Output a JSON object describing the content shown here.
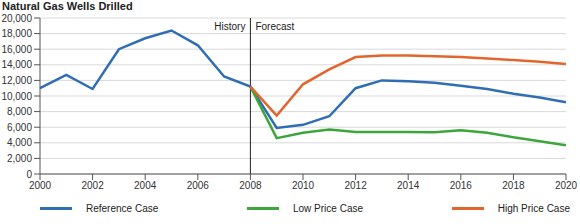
{
  "chart_data": {
    "type": "line",
    "title": "Natural Gas Wells Drilled",
    "x": [
      2000,
      2001,
      2002,
      2003,
      2004,
      2005,
      2006,
      2007,
      2008,
      2009,
      2010,
      2011,
      2012,
      2013,
      2014,
      2015,
      2016,
      2017,
      2018,
      2019,
      2020
    ],
    "series": [
      {
        "name": "Reference Case",
        "color": "#2f6db5",
        "values": [
          11000,
          12700,
          10900,
          16000,
          17400,
          18400,
          16500,
          12500,
          11200,
          5900,
          6300,
          7400,
          11000,
          12000,
          11900,
          11700,
          11300,
          10900,
          10300,
          9800,
          9200
        ]
      },
      {
        "name": "Low Price Case",
        "color": "#3da63a",
        "values": [
          null,
          null,
          null,
          null,
          null,
          null,
          null,
          null,
          11200,
          4600,
          5300,
          5700,
          5400,
          5400,
          5400,
          5350,
          5600,
          5300,
          4700,
          4200,
          3700
        ]
      },
      {
        "name": "High Price Case",
        "color": "#e2662b",
        "values": [
          null,
          null,
          null,
          null,
          null,
          null,
          null,
          null,
          11200,
          7500,
          11500,
          13400,
          15000,
          15200,
          15200,
          15100,
          15000,
          14800,
          14600,
          14400,
          14100
        ]
      }
    ],
    "xlim": [
      2000,
      2020
    ],
    "xticks": [
      2000,
      2002,
      2004,
      2006,
      2008,
      2010,
      2012,
      2014,
      2016,
      2018,
      2020
    ],
    "ylim": [
      0,
      20000
    ],
    "yticks": [
      0,
      {
        "value": 2000,
        "label": "2,000"
      },
      {
        "value": 4000,
        "label": "4,000"
      },
      {
        "value": 6000,
        "label": "6,000"
      },
      {
        "value": 8000,
        "label": "8,000"
      },
      {
        "value": 10000,
        "label": "10,000"
      },
      {
        "value": 12000,
        "label": "12,000"
      },
      {
        "value": 14000,
        "label": "14,000"
      },
      {
        "value": 16000,
        "label": "16,000"
      },
      {
        "value": 18000,
        "label": "18,000"
      },
      {
        "value": 20000,
        "label": "20,000"
      }
    ],
    "reference_line": {
      "x": 2008,
      "left_label": "History",
      "right_label": "Forecast"
    },
    "grid": true,
    "legend": "bottom"
  }
}
